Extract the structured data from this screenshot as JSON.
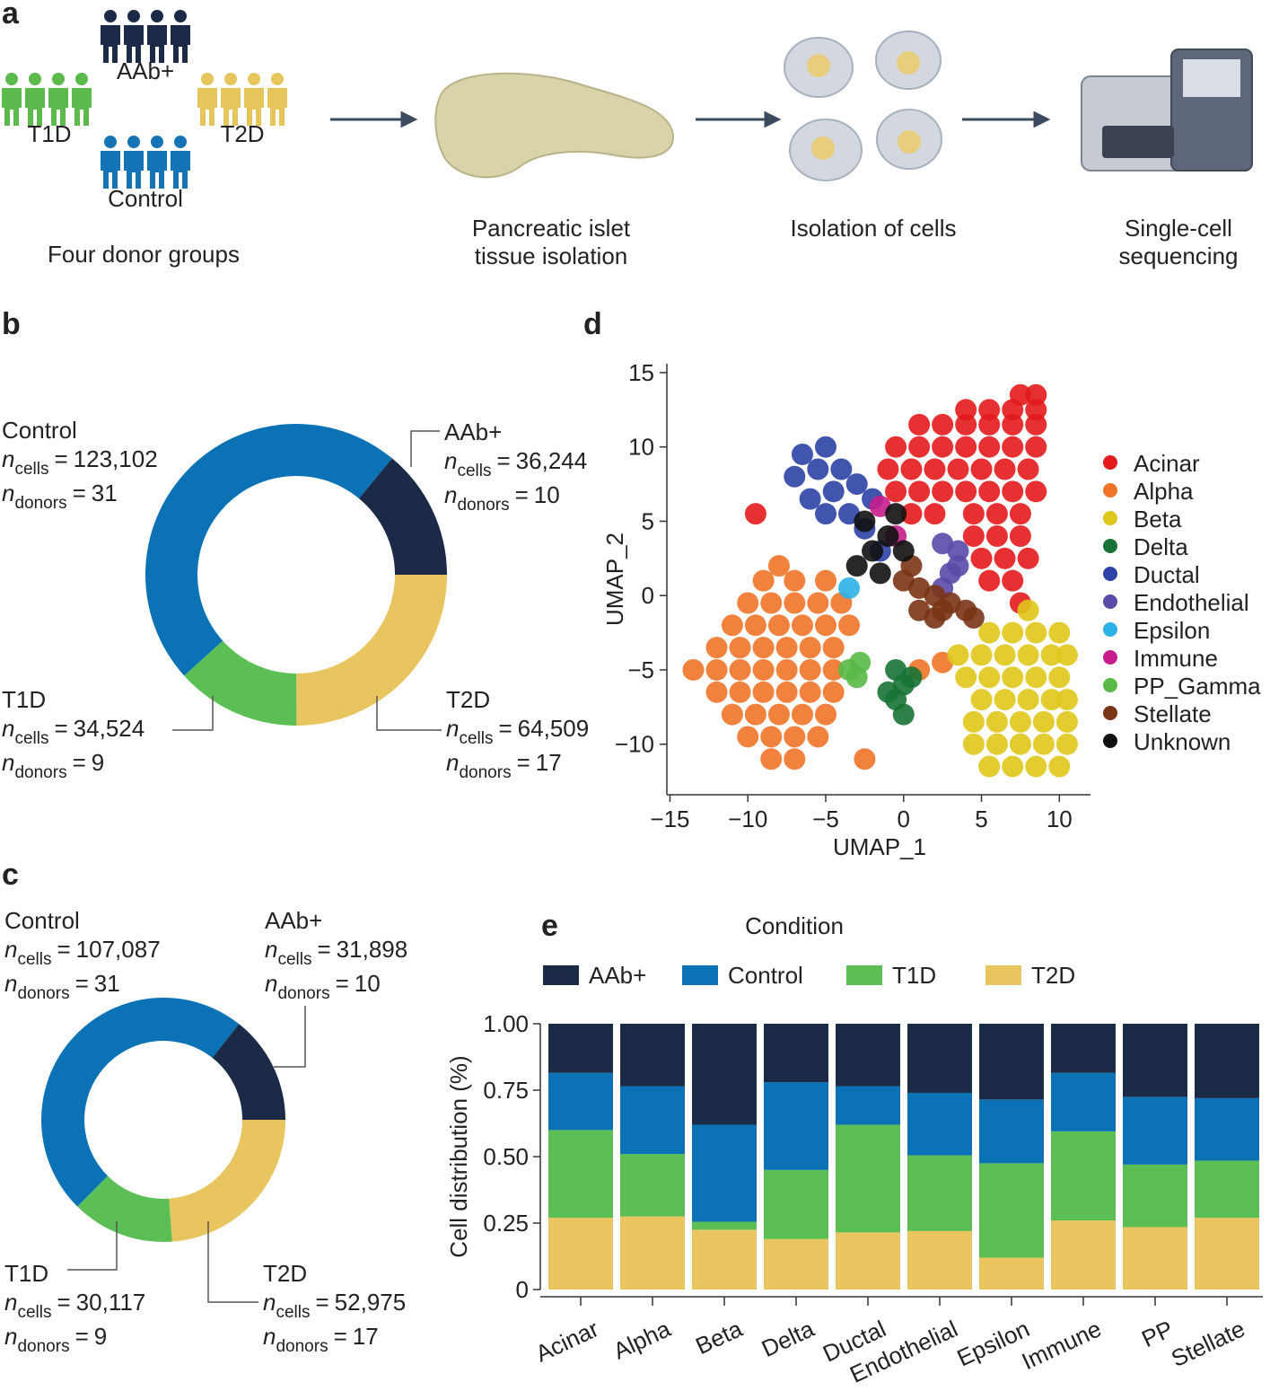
{
  "panels": {
    "a": "a",
    "b": "b",
    "c": "c",
    "d": "d",
    "e": "e"
  },
  "workflow": {
    "groups": [
      {
        "name": "AAb+",
        "color": "#1b2a47"
      },
      {
        "name": "T1D",
        "color": "#5cb94c"
      },
      {
        "name": "T2D",
        "color": "#e6c55a"
      },
      {
        "name": "Control",
        "color": "#1474b5"
      }
    ],
    "caption": "Four donor groups",
    "steps": [
      [
        "Pancreatic islet",
        "tissue isolation"
      ],
      [
        "Isolation of cells"
      ],
      [
        "Single-cell",
        "sequencing"
      ]
    ]
  },
  "chart_data": [
    {
      "type": "donut",
      "categories": [
        "Control",
        "AAb+",
        "T2D",
        "T1D"
      ],
      "values": [
        123102,
        36244,
        64509,
        34524
      ],
      "value_labels": [
        "123,102",
        "36,244",
        "64,509",
        "34,524"
      ],
      "donors": [
        31,
        10,
        17,
        9
      ],
      "colors": [
        "#0b73b5",
        "#1b2a47",
        "#e8c55e",
        "#5cbf56"
      ],
      "count_symbol": "n",
      "count_label": "cells",
      "donor_label": "donors",
      "equals": "="
    },
    {
      "type": "donut",
      "categories": [
        "Control",
        "AAb+",
        "T2D",
        "T1D"
      ],
      "values": [
        107087,
        31898,
        52975,
        30117
      ],
      "value_labels": [
        "107,087",
        "31,898",
        "52,975",
        "30,117"
      ],
      "donors": [
        31,
        10,
        17,
        9
      ],
      "colors": [
        "#0b73b5",
        "#1b2a47",
        "#e8c55e",
        "#5cbf56"
      ],
      "count_symbol": "n",
      "count_label": "cells",
      "donor_label": "donors",
      "equals": "="
    },
    {
      "type": "scatter",
      "x_label": "UMAP_1",
      "y_label": "UMAP_2",
      "xlim": [
        -15.2,
        12
      ],
      "ylim": [
        -13.4,
        15.6
      ],
      "xticks": [
        {
          "value": -15,
          "label": "−15"
        },
        {
          "value": -10,
          "label": "−10"
        },
        {
          "value": -5,
          "label": "−5"
        },
        0,
        5,
        10
      ],
      "yticks": [
        {
          "value": -10,
          "label": "−10"
        },
        {
          "value": -5,
          "label": "−5"
        },
        0,
        5,
        10,
        15
      ],
      "series": [
        {
          "name": "Acinar",
          "color": "#e31a1c",
          "x": [
            7.5,
            8.5,
            4,
            5.5,
            7,
            8.5,
            1,
            2.5,
            4,
            5.5,
            7,
            8.5,
            -0.5,
            1,
            2.5,
            4,
            5.5,
            7,
            8.5,
            -1,
            0.5,
            2,
            3.5,
            5,
            6.5,
            8,
            -0.5,
            1,
            2.5,
            4,
            5.5,
            7,
            8.5,
            0.5,
            2,
            4.5,
            6,
            7.5,
            4.5,
            6,
            7.5,
            5,
            6.5,
            8,
            5.5,
            7,
            7.5,
            -9.5
          ],
          "y": [
            13.5,
            13.5,
            12.5,
            12.5,
            12.5,
            12.5,
            11.5,
            11.5,
            11.5,
            11.5,
            11.5,
            11.5,
            10,
            10,
            10,
            10,
            10,
            10,
            10,
            8.5,
            8.5,
            8.5,
            8.5,
            8.5,
            8.5,
            8.5,
            7,
            7,
            7,
            7,
            7,
            7,
            7,
            5.5,
            5.5,
            5.5,
            5.5,
            5.5,
            4,
            4,
            4,
            2.5,
            2.5,
            2.5,
            1,
            1,
            -0.5,
            5.5
          ]
        },
        {
          "name": "Alpha",
          "color": "#f07428",
          "x": [
            -8,
            -9,
            -7,
            -5,
            -10,
            -8.5,
            -7,
            -5.5,
            -4,
            -11,
            -9.5,
            -8,
            -6.5,
            -5,
            -3.5,
            -12,
            -10.5,
            -9,
            -7.5,
            -6,
            -4.5,
            -13.5,
            -12,
            -10.5,
            -9,
            -7.5,
            -6,
            -4.5,
            -12,
            -10.5,
            -9,
            -7.5,
            -6,
            -4.5,
            -11,
            -9.5,
            -8,
            -6.5,
            -5,
            -10,
            -8.5,
            -7,
            -5.5,
            -8.5,
            -7,
            -2.5,
            1,
            2.5
          ],
          "y": [
            2,
            1,
            1,
            1,
            -0.5,
            -0.5,
            -0.5,
            -0.5,
            -0.5,
            -2,
            -2,
            -2,
            -2,
            -2,
            -2,
            -3.5,
            -3.5,
            -3.5,
            -3.5,
            -3.5,
            -3.5,
            -5,
            -5,
            -5,
            -5,
            -5,
            -5,
            -5,
            -6.5,
            -6.5,
            -6.5,
            -6.5,
            -6.5,
            -6.5,
            -8,
            -8,
            -8,
            -8,
            -8,
            -9.5,
            -9.5,
            -9.5,
            -9.5,
            -11,
            -11,
            -11,
            -5,
            -4.5
          ]
        },
        {
          "name": "Beta",
          "color": "#dfc61a",
          "x": [
            8,
            5.5,
            7,
            8.5,
            10,
            3.5,
            5,
            6.5,
            8,
            9.5,
            10.5,
            4,
            5.5,
            7,
            8.5,
            10,
            5,
            6.5,
            8,
            9.5,
            10.5,
            4.5,
            6,
            7.5,
            9,
            10.5,
            4.5,
            6,
            7.5,
            9,
            10.5,
            5.5,
            7,
            8.5,
            10
          ],
          "y": [
            -1,
            -2.5,
            -2.5,
            -2.5,
            -2.5,
            -4,
            -4,
            -4,
            -4,
            -4,
            -4,
            -5.5,
            -5.5,
            -5.5,
            -5.5,
            -5.5,
            -7,
            -7,
            -7,
            -7,
            -7,
            -8.5,
            -8.5,
            -8.5,
            -8.5,
            -8.5,
            -10,
            -10,
            -10,
            -10,
            -10,
            -11.5,
            -11.5,
            -11.5,
            -11.5
          ]
        },
        {
          "name": "Delta",
          "color": "#177335",
          "x": [
            -0.5,
            0,
            -0.5,
            0,
            0.5,
            -1
          ],
          "y": [
            -5,
            -6,
            -7,
            -8,
            -5.5,
            -6.5
          ]
        },
        {
          "name": "Ductal",
          "color": "#2c42a6",
          "x": [
            -6.5,
            -5,
            -7,
            -5.5,
            -4,
            -6,
            -4.5,
            -3,
            -5,
            -3.5,
            -2.5,
            -2,
            -1.5
          ],
          "y": [
            9.5,
            10,
            8,
            8.5,
            8.5,
            6.5,
            7,
            7.5,
            5.5,
            5.5,
            4.5,
            6.5,
            3
          ]
        },
        {
          "name": "Endothelial",
          "color": "#5b4aa8",
          "x": [
            2.5,
            3.5,
            3,
            2.5,
            3.5
          ],
          "y": [
            3.5,
            3,
            1.5,
            0.5,
            2
          ]
        },
        {
          "name": "Epsilon",
          "color": "#2bb0e6",
          "x": [
            -3.5
          ],
          "y": [
            0.5
          ]
        },
        {
          "name": "Immune",
          "color": "#c71d8c",
          "x": [
            -0.5,
            -1.5
          ],
          "y": [
            4,
            6
          ]
        },
        {
          "name": "PP_Gamma",
          "color": "#58b947",
          "x": [
            -3.5,
            -2.8,
            -3
          ],
          "y": [
            -5,
            -4.5,
            -5.5
          ]
        },
        {
          "name": "Stellate",
          "color": "#7a3416",
          "x": [
            0,
            1,
            2,
            3,
            4,
            4.5,
            1,
            2,
            0.5,
            2.5
          ],
          "y": [
            1,
            0.5,
            0,
            -0.5,
            -1,
            -1.5,
            -1,
            -1.5,
            2,
            -1
          ]
        },
        {
          "name": "Unknown",
          "color": "#111111",
          "x": [
            -2,
            -1,
            -3,
            -1.5,
            -2.5,
            -0.5,
            0
          ],
          "y": [
            3,
            4,
            2,
            1.5,
            5,
            5.5,
            3
          ]
        }
      ]
    },
    {
      "type": "stacked_bar",
      "legend_title": "Condition",
      "y_label": "Cell distribution (%)",
      "categories": [
        "Acinar",
        "Alpha",
        "Beta",
        "Delta",
        "Ductal",
        "Endothelial",
        "Epsilon",
        "Immune",
        "PP",
        "Stellate"
      ],
      "ylim": [
        0,
        1
      ],
      "yticks": [
        0,
        0.25,
        {
          "value": 0.5,
          "label": "0.50"
        },
        0.75,
        {
          "value": 1,
          "label": "1.00"
        }
      ],
      "series": [
        {
          "name": "T2D",
          "color": "#e8c55e",
          "values": [
            0.27,
            0.275,
            0.225,
            0.19,
            0.215,
            0.22,
            0.12,
            0.26,
            0.235,
            0.27
          ]
        },
        {
          "name": "T1D",
          "color": "#5cbf56",
          "values": [
            0.33,
            0.235,
            0.03,
            0.26,
            0.405,
            0.285,
            0.355,
            0.335,
            0.235,
            0.215
          ]
        },
        {
          "name": "Control",
          "color": "#0b73b5",
          "values": [
            0.215,
            0.255,
            0.365,
            0.33,
            0.145,
            0.235,
            0.24,
            0.22,
            0.255,
            0.235
          ]
        },
        {
          "name": "AAb+",
          "color": "#1b2a47",
          "values": [
            0.185,
            0.235,
            0.38,
            0.22,
            0.235,
            0.26,
            0.285,
            0.185,
            0.275,
            0.28
          ]
        }
      ]
    }
  ]
}
